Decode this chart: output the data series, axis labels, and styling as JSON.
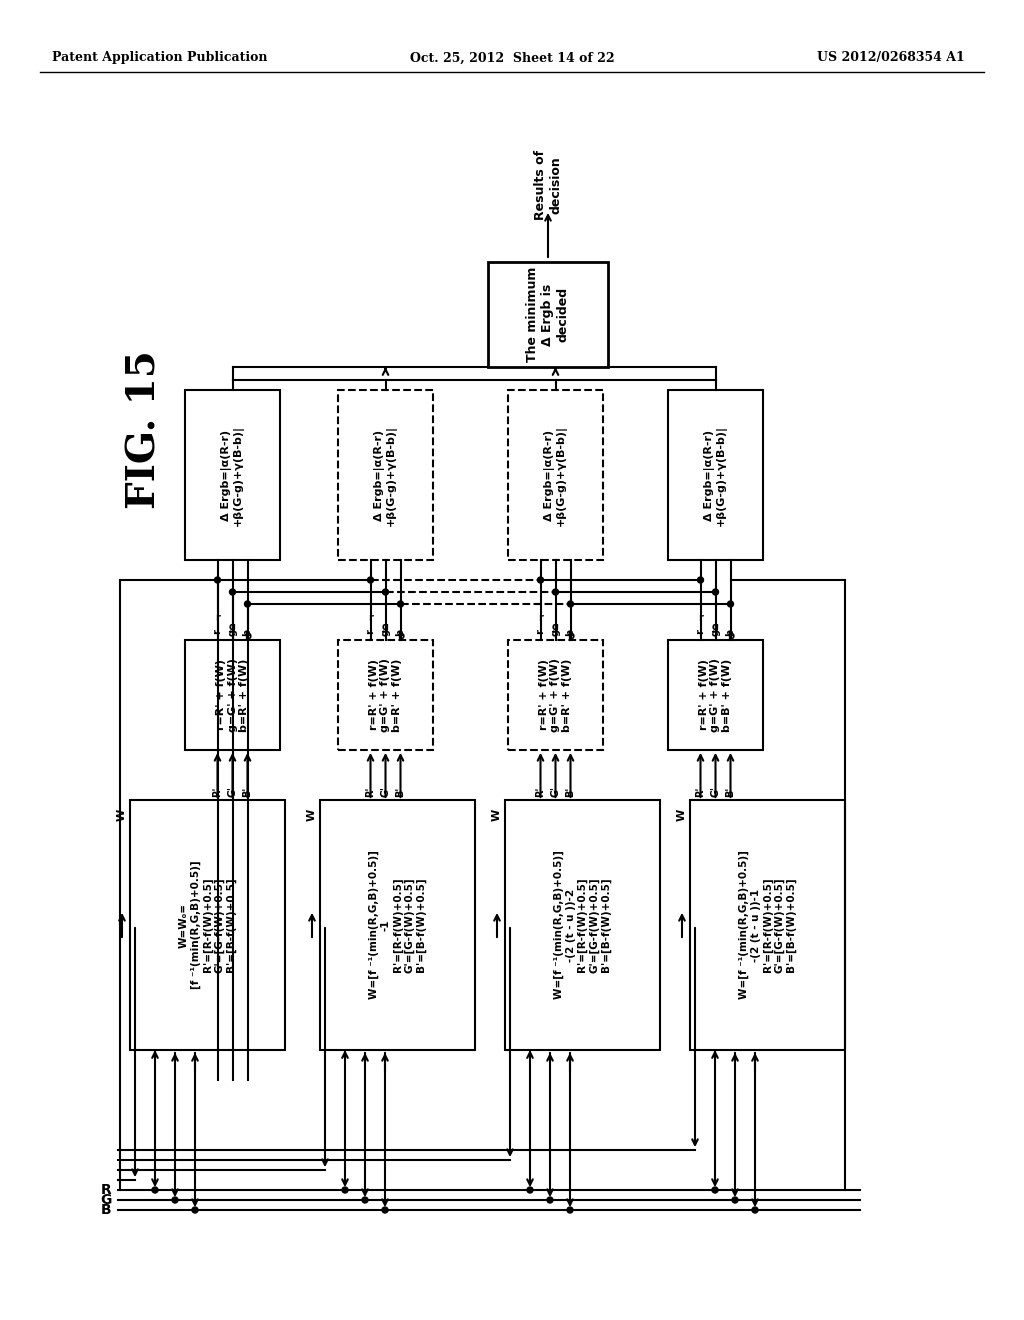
{
  "header_left": "Patent Application Publication",
  "header_mid": "Oct. 25, 2012  Sheet 14 of 22",
  "header_right": "US 2012/0268354 A1",
  "fig_label": "FIG. 15",
  "background_color": "#ffffff",
  "top_label": "Results of\ndecision",
  "decision_text": "The minimum\nΔ Ergb is\ndecided",
  "ergb_text": "Δ Ergb=|a(R-r)\n+β(G-g)+γ(B-b)|",
  "fw_text_1": "r=R' + f(W)\ng=G' + f(W)\nb=R' + f(W)",
  "fw_text_2": "r=R' + f(W)\ng=G' + f(W)\nb=R' + f(W)",
  "fw_text_3": "r=R' + f(W)\ng=G' + f(W)\nb=R' + f(W)",
  "fw_text_4": "r=R' + f(W)\ng=G' + f(W)\nb=B' + f(W)",
  "bot_text_1": "W=W₀=\n[f ⁻¹(min(R,G,B)+0.5)]\nR'=[R-f(W)+0.5]\nG'=[G-f(W)+0.5]\nB'=[B-f(W)+0.5]",
  "bot_text_2": "W=[f ⁻¹(min(R,G,B)+0.5)]\n-1\nR'=[R-f(W)+0.5]\nG'=[G-f(W)+0.5]\nB'=[B-f(W)+0.5]",
  "bot_text_3": "W=[f ⁻¹(min(R,G,B)+0.5)]\n-(2 (t - u ))-2\nR'=[R-f(W)+0.5]\nG'=[G-f(W)+0.5]\nB'=[B-f(W)+0.5]",
  "bot_text_4": "W=[f ⁻¹(min(R,G,B)+0.5)]\n-(2 (t - u ))-1\nR'=[R-f(W)+0.5]\nG'=[G-f(W)+0.5]\nB'=[B-f(W)+0.5]"
}
